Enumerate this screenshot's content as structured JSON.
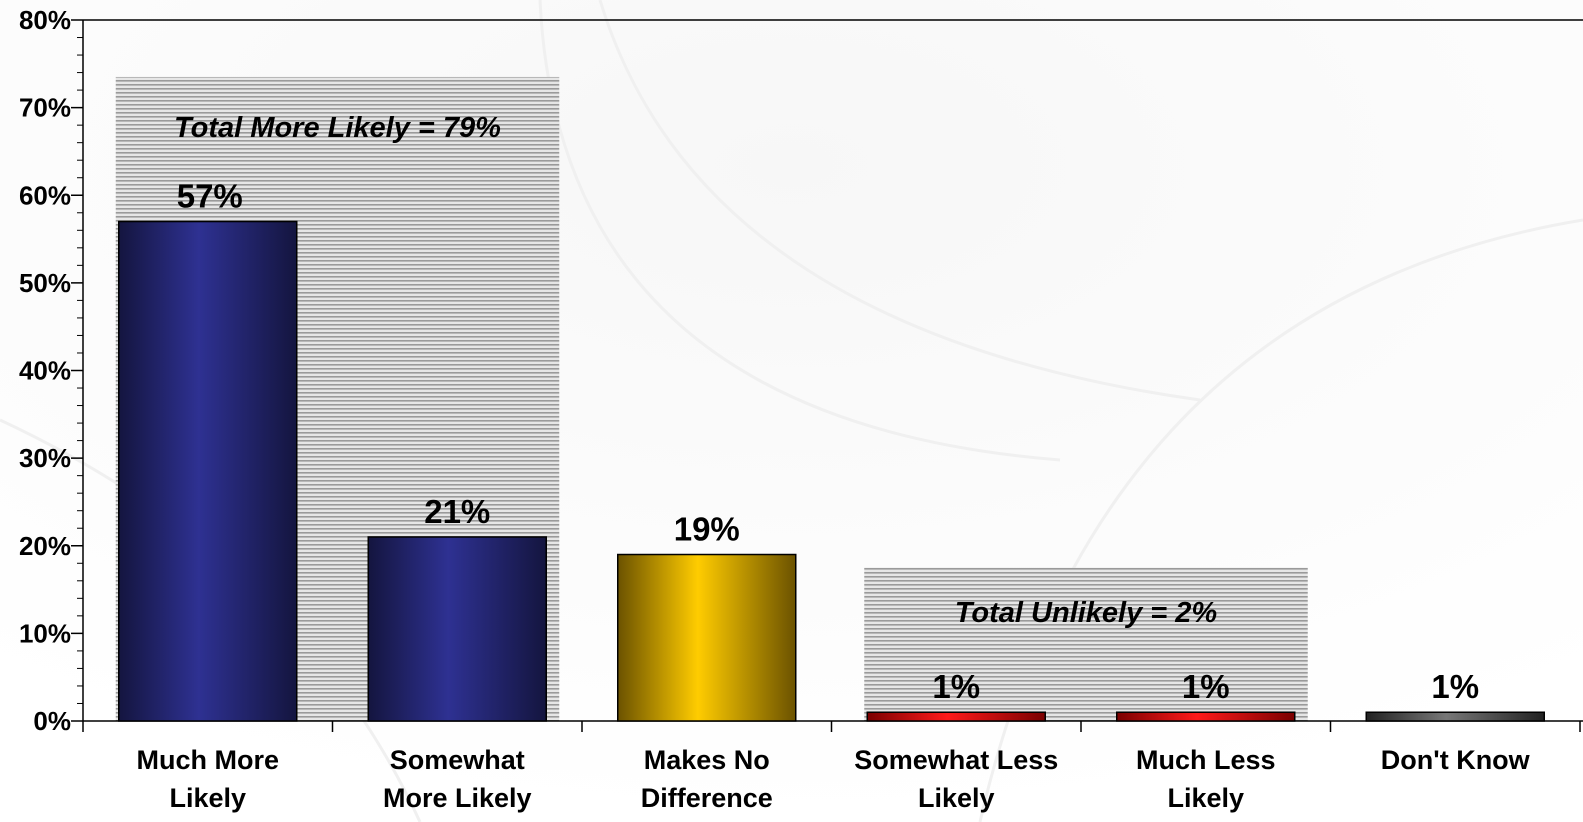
{
  "chart_data": {
    "type": "bar",
    "title": "",
    "xlabel": "",
    "ylabel": "",
    "ylim": [
      0,
      80
    ],
    "y_unit": "%",
    "y_ticks": [
      "0%",
      "10%",
      "20%",
      "30%",
      "40%",
      "50%",
      "60%",
      "70%",
      "80%"
    ],
    "grid": false,
    "categories": [
      [
        "Much More",
        "Likely"
      ],
      [
        "Somewhat",
        "More Likely"
      ],
      [
        "Makes No",
        "Difference"
      ],
      [
        "Somewhat Less",
        "Likely"
      ],
      [
        "Much Less",
        "Likely"
      ],
      [
        "Don't Know"
      ]
    ],
    "values": [
      57,
      21,
      19,
      1,
      1,
      1
    ],
    "value_labels": [
      "57%",
      "21%",
      "19%",
      "1%",
      "1%",
      "1%"
    ],
    "bar_colors": [
      "#2e3192",
      "#2e3192",
      "#ffcc00",
      "#e00000",
      "#e00000",
      "#555555"
    ],
    "groups": [
      {
        "label": "Total More Likely = 79%",
        "from": 0,
        "to": 1,
        "value": 79
      },
      {
        "label": "Total Unlikely = 2%",
        "from": 3,
        "to": 4,
        "value": 2
      }
    ]
  }
}
